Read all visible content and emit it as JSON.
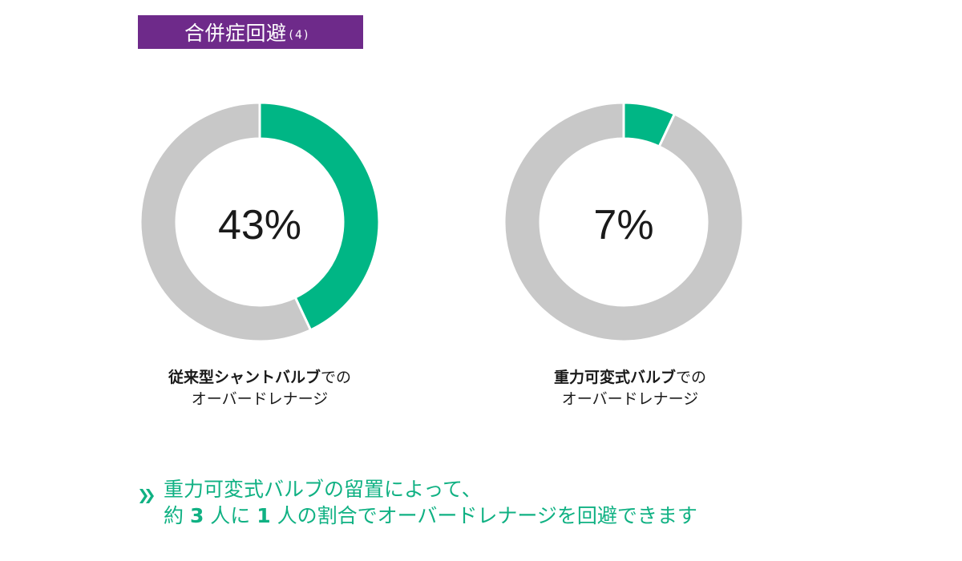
{
  "header": {
    "title": "合併症回避",
    "title_num": "(4)"
  },
  "colors": {
    "accent": "#10b183",
    "donut_green": "#00b685",
    "donut_gray": "#c8c8c8",
    "header_bg": "#6e2a8a"
  },
  "chart_data": [
    {
      "type": "pie",
      "variant": "donut",
      "center_label": "43%",
      "slices": [
        {
          "value": 43,
          "color": "#00b685"
        },
        {
          "value": 57,
          "color": "#c8c8c8"
        }
      ],
      "caption_strong": "従来型シャントバルブ",
      "caption_rest": "での",
      "caption_line2": "オーバードレナージ"
    },
    {
      "type": "pie",
      "variant": "donut",
      "center_label": "7%",
      "slices": [
        {
          "value": 7,
          "color": "#00b685"
        },
        {
          "value": 93,
          "color": "#c8c8c8"
        }
      ],
      "caption_strong": "重力可変式バルブ",
      "caption_rest": "での",
      "caption_line2": "オーバードレナージ"
    }
  ],
  "conclusion": {
    "line1": "重力可変式バルブの留置によって、",
    "line2_a": "約 ",
    "line2_num1": "3",
    "line2_b": " 人に ",
    "line2_num2": "1",
    "line2_c": " 人の割合でオーバードレナージを回避できます"
  }
}
